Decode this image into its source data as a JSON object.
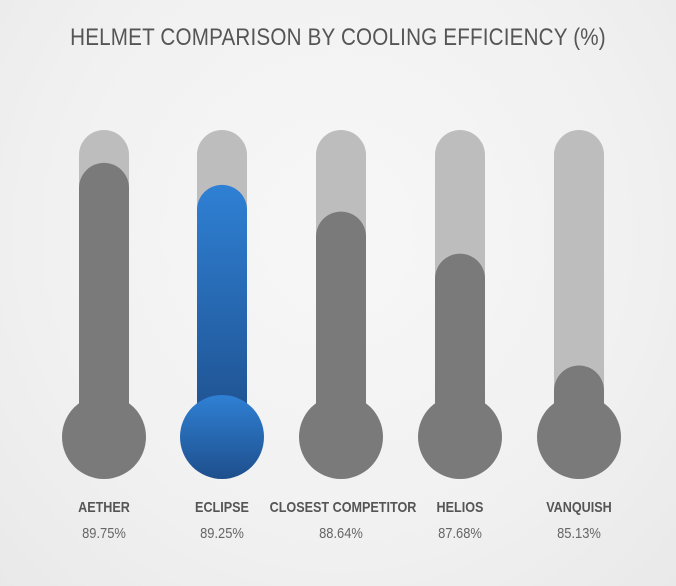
{
  "chart_data": {
    "type": "bar",
    "title": "HELMET COMPARISON BY COOLING EFFICIENCY (%)",
    "categories": [
      "AETHER",
      "ECLIPSE",
      "CLOSEST COMPETITOR",
      "HELIOS",
      "VANQUISH"
    ],
    "values": [
      89.75,
      89.25,
      88.64,
      87.68,
      85.13
    ],
    "value_labels": [
      "89.75%",
      "89.25%",
      "88.64%",
      "87.68%",
      "85.13%"
    ],
    "ylim": [
      83.5,
      90.5
    ],
    "highlight_index": 1,
    "grid": false,
    "legend": "none",
    "colors": {
      "track": "#bdbdbd",
      "fill": "#7a7a7a",
      "highlight_top": "#2f80d4",
      "highlight_bottom": "#1e4f8c",
      "label": "#555555",
      "value": "#666666"
    }
  }
}
